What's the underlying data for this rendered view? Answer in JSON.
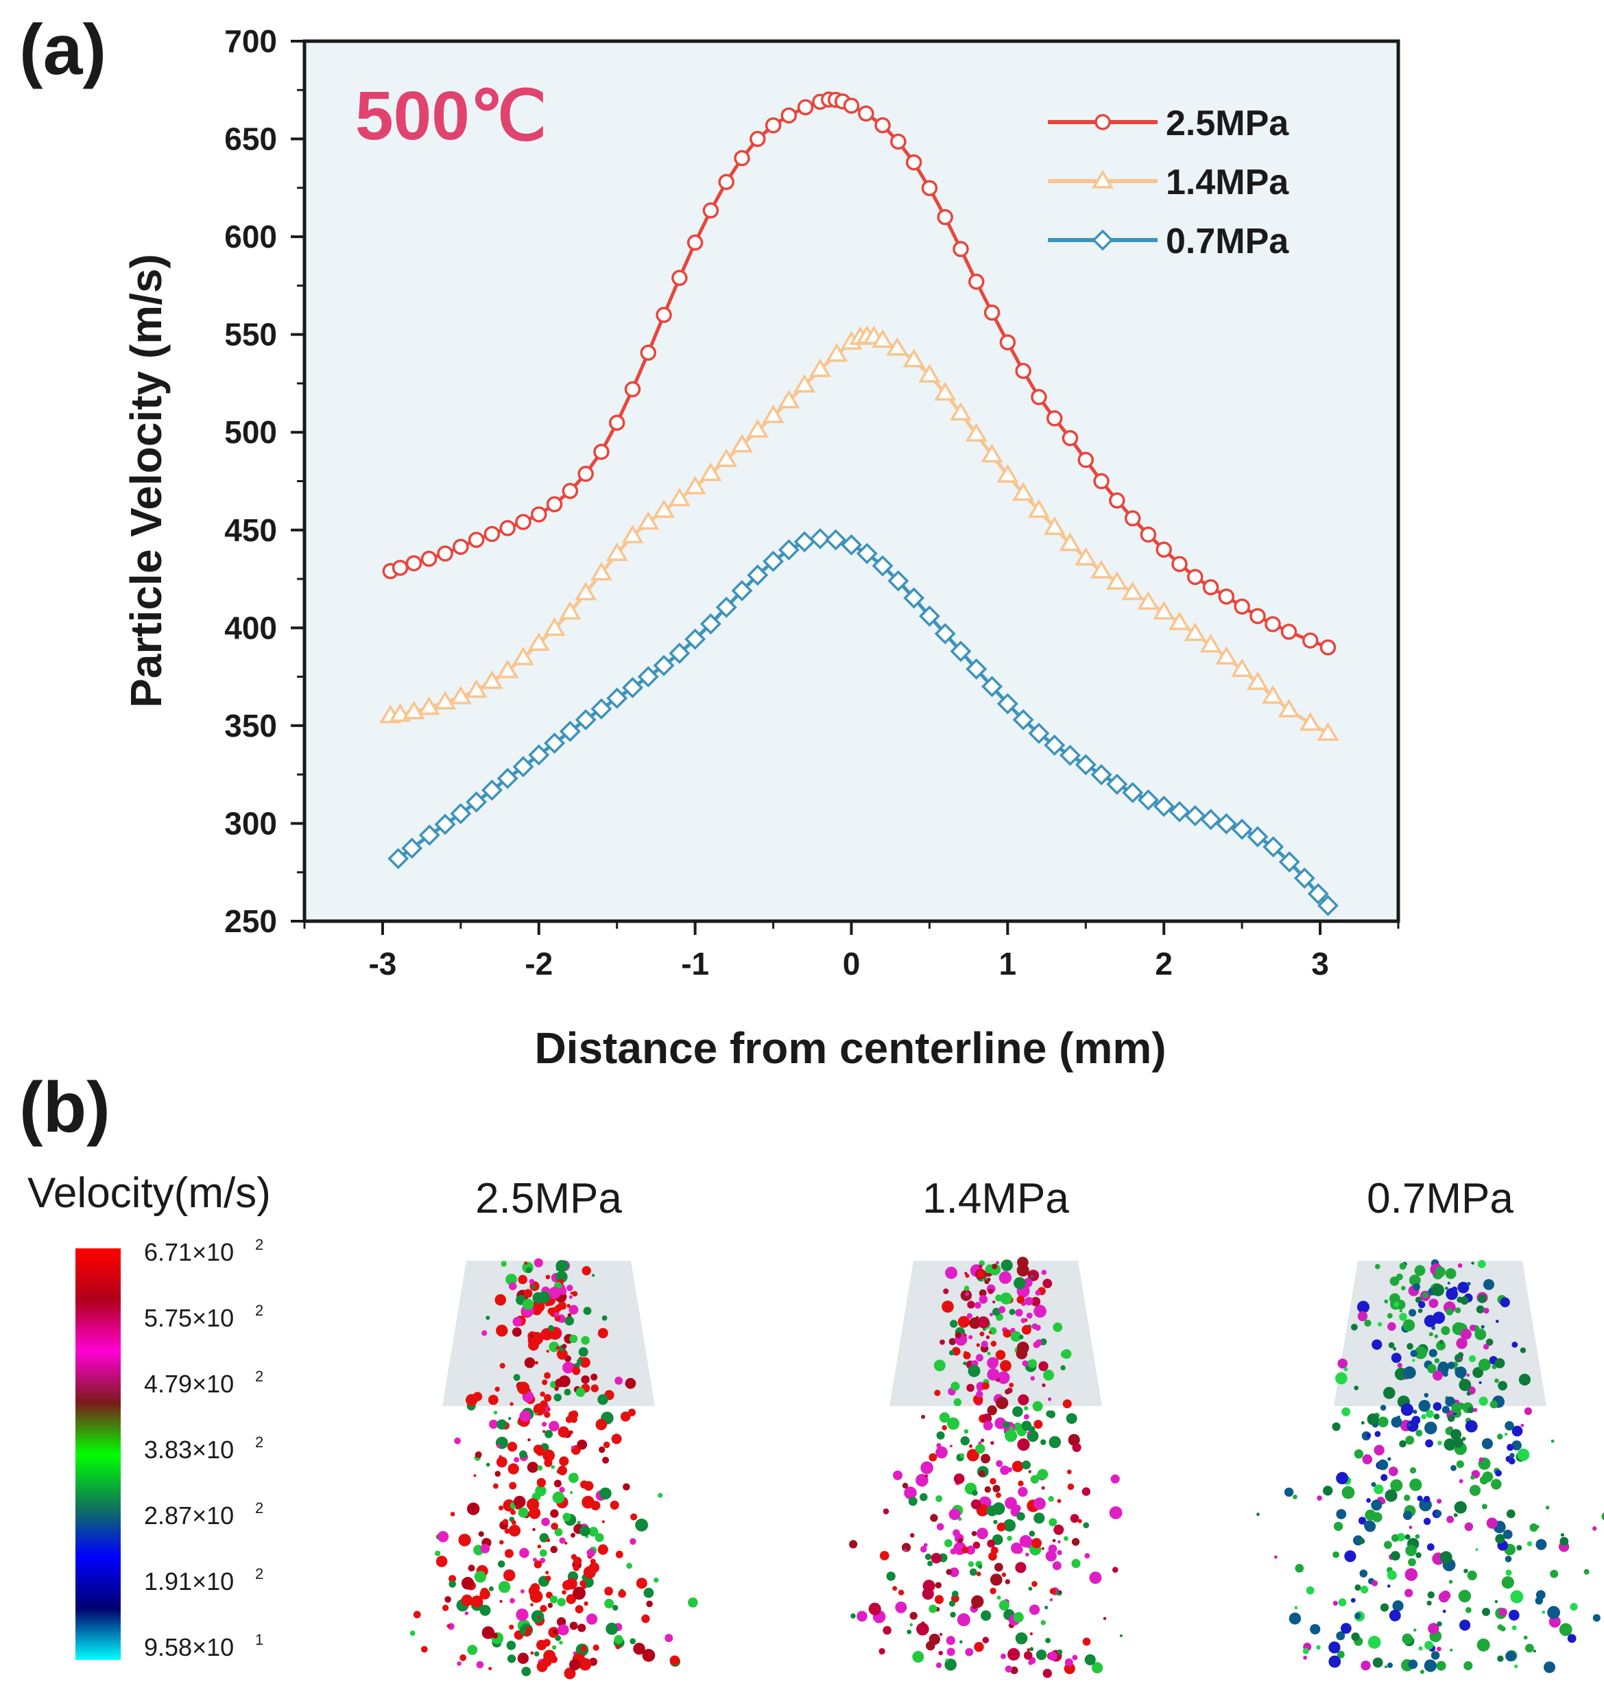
{
  "panel_a_label": "(a)",
  "panel_b_label": "(b)",
  "temperature_label": "500℃",
  "colors": {
    "plot_background": "#ecf4f7",
    "series_2_5": "#e8453c",
    "series_1_4": "#f9c48f",
    "series_0_7": "#3d93bb",
    "temperature_text": "#e0436e"
  },
  "chart_data": {
    "type": "line",
    "title": "",
    "xlabel": "Distance from centerline (mm)",
    "ylabel": "Particle Velocity (m/s)",
    "xlim": [
      -3.5,
      3.5
    ],
    "ylim": [
      250,
      700
    ],
    "xticks": [
      -3,
      -2,
      -1,
      0,
      1,
      2,
      3
    ],
    "xtick_labels": [
      "-3",
      "-2",
      "-1",
      "0",
      "1",
      "2",
      "3"
    ],
    "yticks": [
      250,
      300,
      350,
      400,
      450,
      500,
      550,
      600,
      650,
      700
    ],
    "ytick_labels": [
      "250",
      "300",
      "350",
      "400",
      "450",
      "500",
      "550",
      "600",
      "650",
      "700"
    ],
    "legend_position": "top-right",
    "series": [
      {
        "name": "2.5MPa",
        "marker": "circle",
        "color": "#e8453c",
        "x": [
          -2.95,
          -2.8,
          -2.6,
          -2.4,
          -2.2,
          -2.0,
          -1.8,
          -1.6,
          -1.4,
          -1.2,
          -1.0,
          -0.8,
          -0.6,
          -0.4,
          -0.2,
          -0.1,
          0.0,
          0.2,
          0.4,
          0.6,
          0.8,
          1.0,
          1.2,
          1.4,
          1.6,
          1.8,
          2.0,
          2.2,
          2.4,
          2.6,
          2.8,
          3.05
        ],
        "y": [
          429,
          433,
          438,
          445,
          451,
          458,
          470,
          490,
          522,
          560,
          597,
          628,
          650,
          662,
          669,
          670,
          667,
          657,
          638,
          610,
          577,
          546,
          518,
          497,
          475,
          456,
          440,
          426,
          416,
          406,
          398,
          390
        ]
      },
      {
        "name": "1.4MPa",
        "marker": "triangle",
        "color": "#f9c48f",
        "x": [
          -2.95,
          -2.8,
          -2.6,
          -2.4,
          -2.2,
          -2.0,
          -1.8,
          -1.6,
          -1.4,
          -1.2,
          -1.0,
          -0.8,
          -0.6,
          -0.4,
          -0.2,
          0.0,
          0.1,
          0.2,
          0.4,
          0.6,
          0.8,
          1.0,
          1.2,
          1.4,
          1.6,
          1.8,
          2.0,
          2.2,
          2.4,
          2.6,
          2.8,
          3.05
        ],
        "y": [
          355,
          357,
          362,
          368,
          378,
          392,
          408,
          428,
          447,
          460,
          472,
          486,
          501,
          516,
          532,
          546,
          549,
          547,
          537,
          520,
          499,
          478,
          460,
          443,
          429,
          418,
          408,
          397,
          385,
          372,
          358,
          346
        ]
      },
      {
        "name": "0.7MPa",
        "marker": "diamond",
        "color": "#3d93bb",
        "x": [
          -2.9,
          -2.7,
          -2.5,
          -2.3,
          -2.1,
          -1.9,
          -1.7,
          -1.5,
          -1.3,
          -1.1,
          -0.9,
          -0.7,
          -0.5,
          -0.3,
          -0.1,
          0.1,
          0.3,
          0.5,
          0.7,
          0.9,
          1.1,
          1.3,
          1.5,
          1.7,
          1.9,
          2.1,
          2.3,
          2.5,
          2.7,
          2.9,
          3.05
        ],
        "y": [
          282,
          294,
          305,
          317,
          329,
          341,
          353,
          364,
          375,
          387,
          402,
          419,
          434,
          444,
          445,
          438,
          424,
          406,
          388,
          370,
          353,
          340,
          330,
          320,
          312,
          306,
          302,
          297,
          288,
          272,
          258
        ]
      }
    ]
  },
  "panel_b": {
    "colorbar_title": "Velocity(m/s)",
    "colorbar_ticks": [
      {
        "mantissa": "6.71×10",
        "exp": "2"
      },
      {
        "mantissa": "5.75×10",
        "exp": "2"
      },
      {
        "mantissa": "4.79×10",
        "exp": "2"
      },
      {
        "mantissa": "3.83×10",
        "exp": "2"
      },
      {
        "mantissa": "2.87×10",
        "exp": "2"
      },
      {
        "mantissa": "1.91×10",
        "exp": "2"
      },
      {
        "mantissa": "9.58×10",
        "exp": "1"
      }
    ],
    "colorbar_colors": [
      "#ff0000",
      "#b0001a",
      "#ff00d6",
      "#7a1a1a",
      "#00ff00",
      "#0f7a55",
      "#0000ff",
      "#000070",
      "#00ffff"
    ],
    "sprays": [
      {
        "label": "2.5MPa",
        "dominant": "#e60f0f",
        "mix": [
          "#e60f0f",
          "#e60f0f",
          "#e60f0f",
          "#b3001a",
          "#22c93c",
          "#0d8a3a",
          "#e61ebf"
        ]
      },
      {
        "label": "1.4MPa",
        "dominant": "#e01ec6",
        "mix": [
          "#e01ec6",
          "#e01ec6",
          "#a0101f",
          "#c0003a",
          "#22c93c",
          "#0d8a3a",
          "#e60f0f"
        ]
      },
      {
        "label": "0.7MPa",
        "dominant": "#1fa83a",
        "mix": [
          "#1fa83a",
          "#1fa83a",
          "#0d7a3a",
          "#22d94c",
          "#1a1acc",
          "#0b5a8a",
          "#d01ebf"
        ]
      }
    ]
  }
}
